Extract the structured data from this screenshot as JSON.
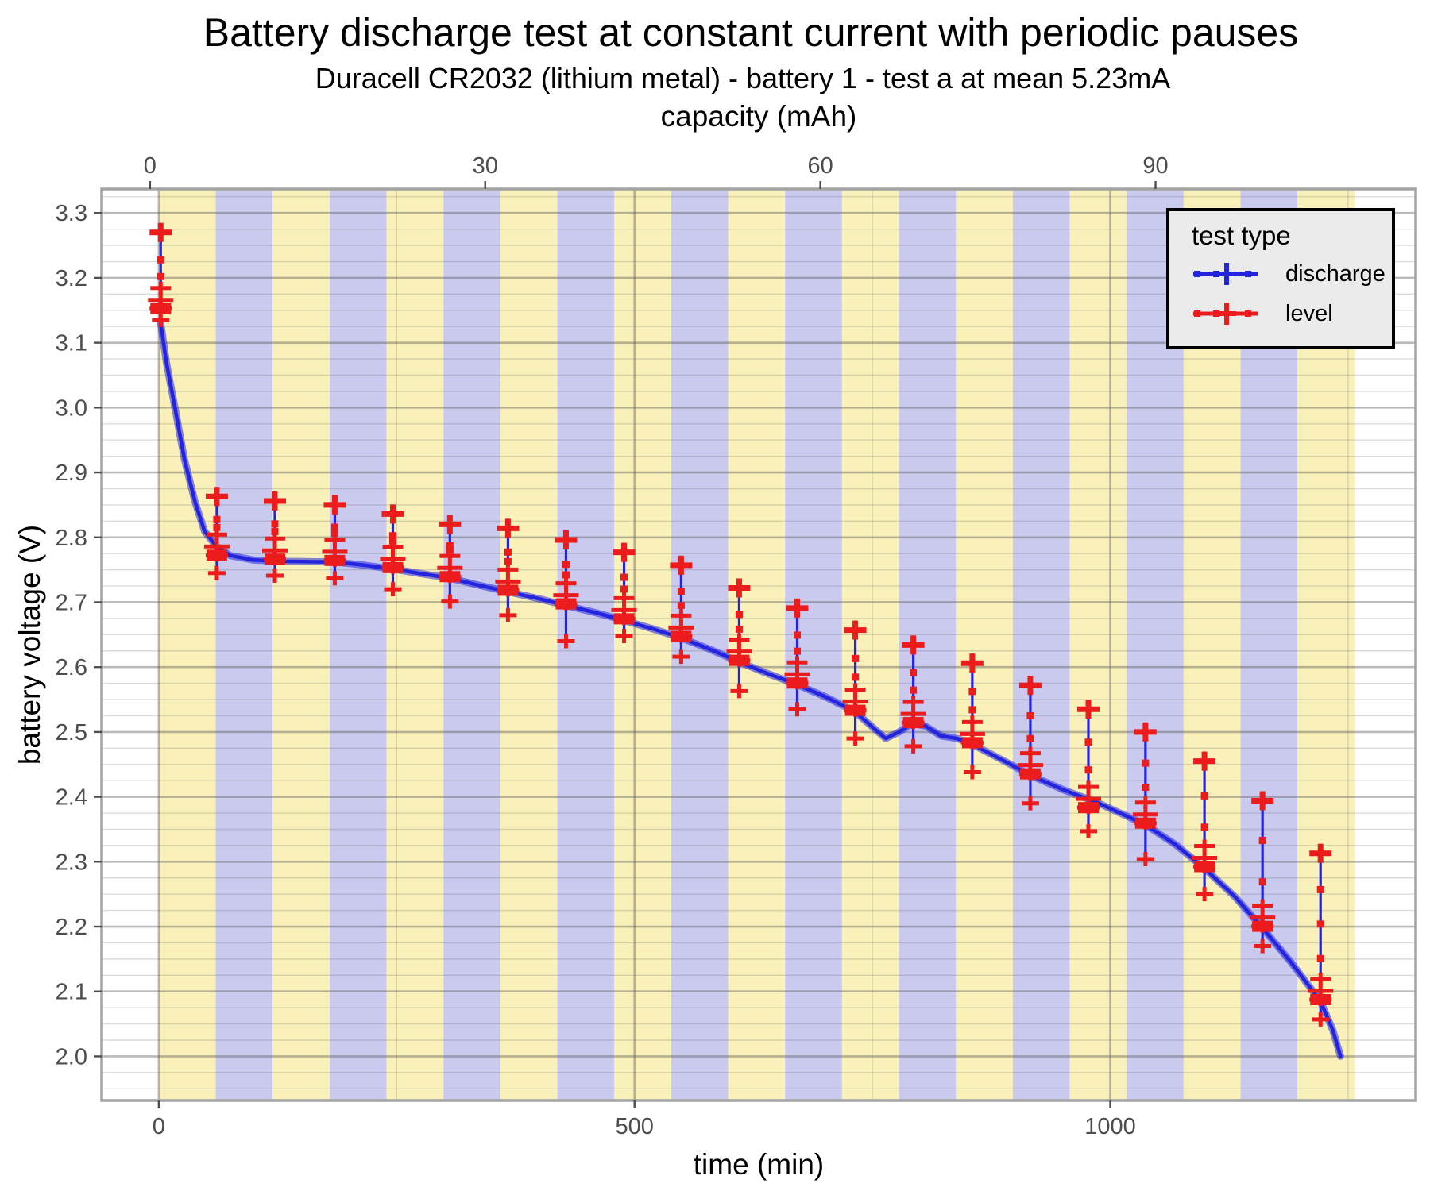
{
  "chart_data": {
    "type": "line",
    "title": "Battery discharge test at constant current with periodic pauses",
    "subtitle": "Duracell CR2032 (lithium metal) - battery 1 - test a at mean 5.23mA",
    "x_axis": {
      "label": "time (min)",
      "ticks": [
        0,
        500,
        1000
      ],
      "minor_ticks": [
        250,
        750,
        1250
      ],
      "range_min": [
        -60,
        1321
      ]
    },
    "x2_axis": {
      "label": "capacity (mAh)",
      "ticks": [
        0,
        30,
        60,
        90
      ],
      "t_offset_min": -9.2,
      "min_per_mAh": 11.742
    },
    "y_axis": {
      "label": "battery voltage (V)",
      "ticks": [
        3.3,
        3.2,
        3.1,
        3.0,
        2.9,
        2.8,
        2.7,
        2.6,
        2.5,
        2.4,
        2.3,
        2.2,
        2.1,
        2.0
      ],
      "minor_step": 0.025,
      "range_v": [
        1.932,
        3.337
      ]
    },
    "legend": {
      "title": "test type",
      "entries": [
        {
          "label": "discharge",
          "color": "#2424DE"
        },
        {
          "label": "level",
          "color": "#ED1C1C"
        }
      ]
    },
    "bands": {
      "count": 21,
      "start_min": 0,
      "step_min": 59.84,
      "colors": [
        "#F9F1B9",
        "#CACAEF"
      ]
    },
    "colors": {
      "discharge": "#2424DE",
      "level": "#ED1C1C",
      "panel_border": "#A3A3A3",
      "grid": "#595959",
      "tick": "#4D4D4D",
      "tick_label": "#4D4D4D"
    },
    "discharge_curve": [
      [
        2,
        3.13
      ],
      [
        8,
        3.07
      ],
      [
        17,
        3.0
      ],
      [
        27,
        2.92
      ],
      [
        38,
        2.855
      ],
      [
        48,
        2.81
      ],
      [
        60,
        2.787
      ],
      [
        75,
        2.772
      ],
      [
        100,
        2.765
      ],
      [
        134,
        2.763
      ],
      [
        184,
        2.762
      ],
      [
        217,
        2.757
      ],
      [
        246,
        2.751
      ],
      [
        276,
        2.744
      ],
      [
        306,
        2.737
      ],
      [
        334,
        2.727
      ],
      [
        367,
        2.716
      ],
      [
        398,
        2.706
      ],
      [
        428,
        2.695
      ],
      [
        459,
        2.684
      ],
      [
        489,
        2.672
      ],
      [
        519,
        2.659
      ],
      [
        549,
        2.645
      ],
      [
        580,
        2.627
      ],
      [
        610,
        2.608
      ],
      [
        640,
        2.59
      ],
      [
        671,
        2.573
      ],
      [
        701,
        2.554
      ],
      [
        732,
        2.531
      ],
      [
        752,
        2.505
      ],
      [
        764,
        2.49
      ],
      [
        778,
        2.5
      ],
      [
        792,
        2.513
      ],
      [
        806,
        2.509
      ],
      [
        822,
        2.494
      ],
      [
        839,
        2.49
      ],
      [
        855,
        2.481
      ],
      [
        885,
        2.458
      ],
      [
        918,
        2.432
      ],
      [
        952,
        2.41
      ],
      [
        985,
        2.392
      ],
      [
        1037,
        2.357
      ],
      [
        1069,
        2.326
      ],
      [
        1099,
        2.29
      ],
      [
        1131,
        2.246
      ],
      [
        1160,
        2.198
      ],
      [
        1190,
        2.145
      ],
      [
        1221,
        2.085
      ],
      [
        1234,
        2.04
      ],
      [
        1242,
        2.0
      ]
    ],
    "level_tests": [
      {
        "t": 2,
        "v_peak": 3.27,
        "v_load": 3.15,
        "v_dip": 3.135
      },
      {
        "t": 61,
        "v_peak": 2.863,
        "v_load": 2.77,
        "v_dip": 2.745
      },
      {
        "t": 122,
        "v_peak": 2.856,
        "v_load": 2.764,
        "v_dip": 2.741
      },
      {
        "t": 185,
        "v_peak": 2.85,
        "v_load": 2.762,
        "v_dip": 2.737
      },
      {
        "t": 246,
        "v_peak": 2.836,
        "v_load": 2.751,
        "v_dip": 2.72
      },
      {
        "t": 306,
        "v_peak": 2.82,
        "v_load": 2.737,
        "v_dip": 2.701
      },
      {
        "t": 367,
        "v_peak": 2.814,
        "v_load": 2.716,
        "v_dip": 2.68
      },
      {
        "t": 428,
        "v_peak": 2.796,
        "v_load": 2.695,
        "v_dip": 2.64
      },
      {
        "t": 489,
        "v_peak": 2.777,
        "v_load": 2.672,
        "v_dip": 2.648
      },
      {
        "t": 549,
        "v_peak": 2.757,
        "v_load": 2.645,
        "v_dip": 2.616
      },
      {
        "t": 610,
        "v_peak": 2.722,
        "v_load": 2.608,
        "v_dip": 2.563
      },
      {
        "t": 671,
        "v_peak": 2.691,
        "v_load": 2.573,
        "v_dip": 2.535
      },
      {
        "t": 732,
        "v_peak": 2.657,
        "v_load": 2.531,
        "v_dip": 2.49
      },
      {
        "t": 793,
        "v_peak": 2.634,
        "v_load": 2.512,
        "v_dip": 2.478
      },
      {
        "t": 855,
        "v_peak": 2.606,
        "v_load": 2.481,
        "v_dip": 2.438
      },
      {
        "t": 916,
        "v_peak": 2.572,
        "v_load": 2.433,
        "v_dip": 2.39
      },
      {
        "t": 977,
        "v_peak": 2.535,
        "v_load": 2.381,
        "v_dip": 2.347
      },
      {
        "t": 1037,
        "v_peak": 2.5,
        "v_load": 2.357,
        "v_dip": 2.304
      },
      {
        "t": 1099,
        "v_peak": 2.455,
        "v_load": 2.29,
        "v_dip": 2.25
      },
      {
        "t": 1160,
        "v_peak": 2.394,
        "v_load": 2.198,
        "v_dip": 2.17
      },
      {
        "t": 1221,
        "v_peak": 2.313,
        "v_load": 2.085,
        "v_dip": 2.057
      }
    ]
  }
}
